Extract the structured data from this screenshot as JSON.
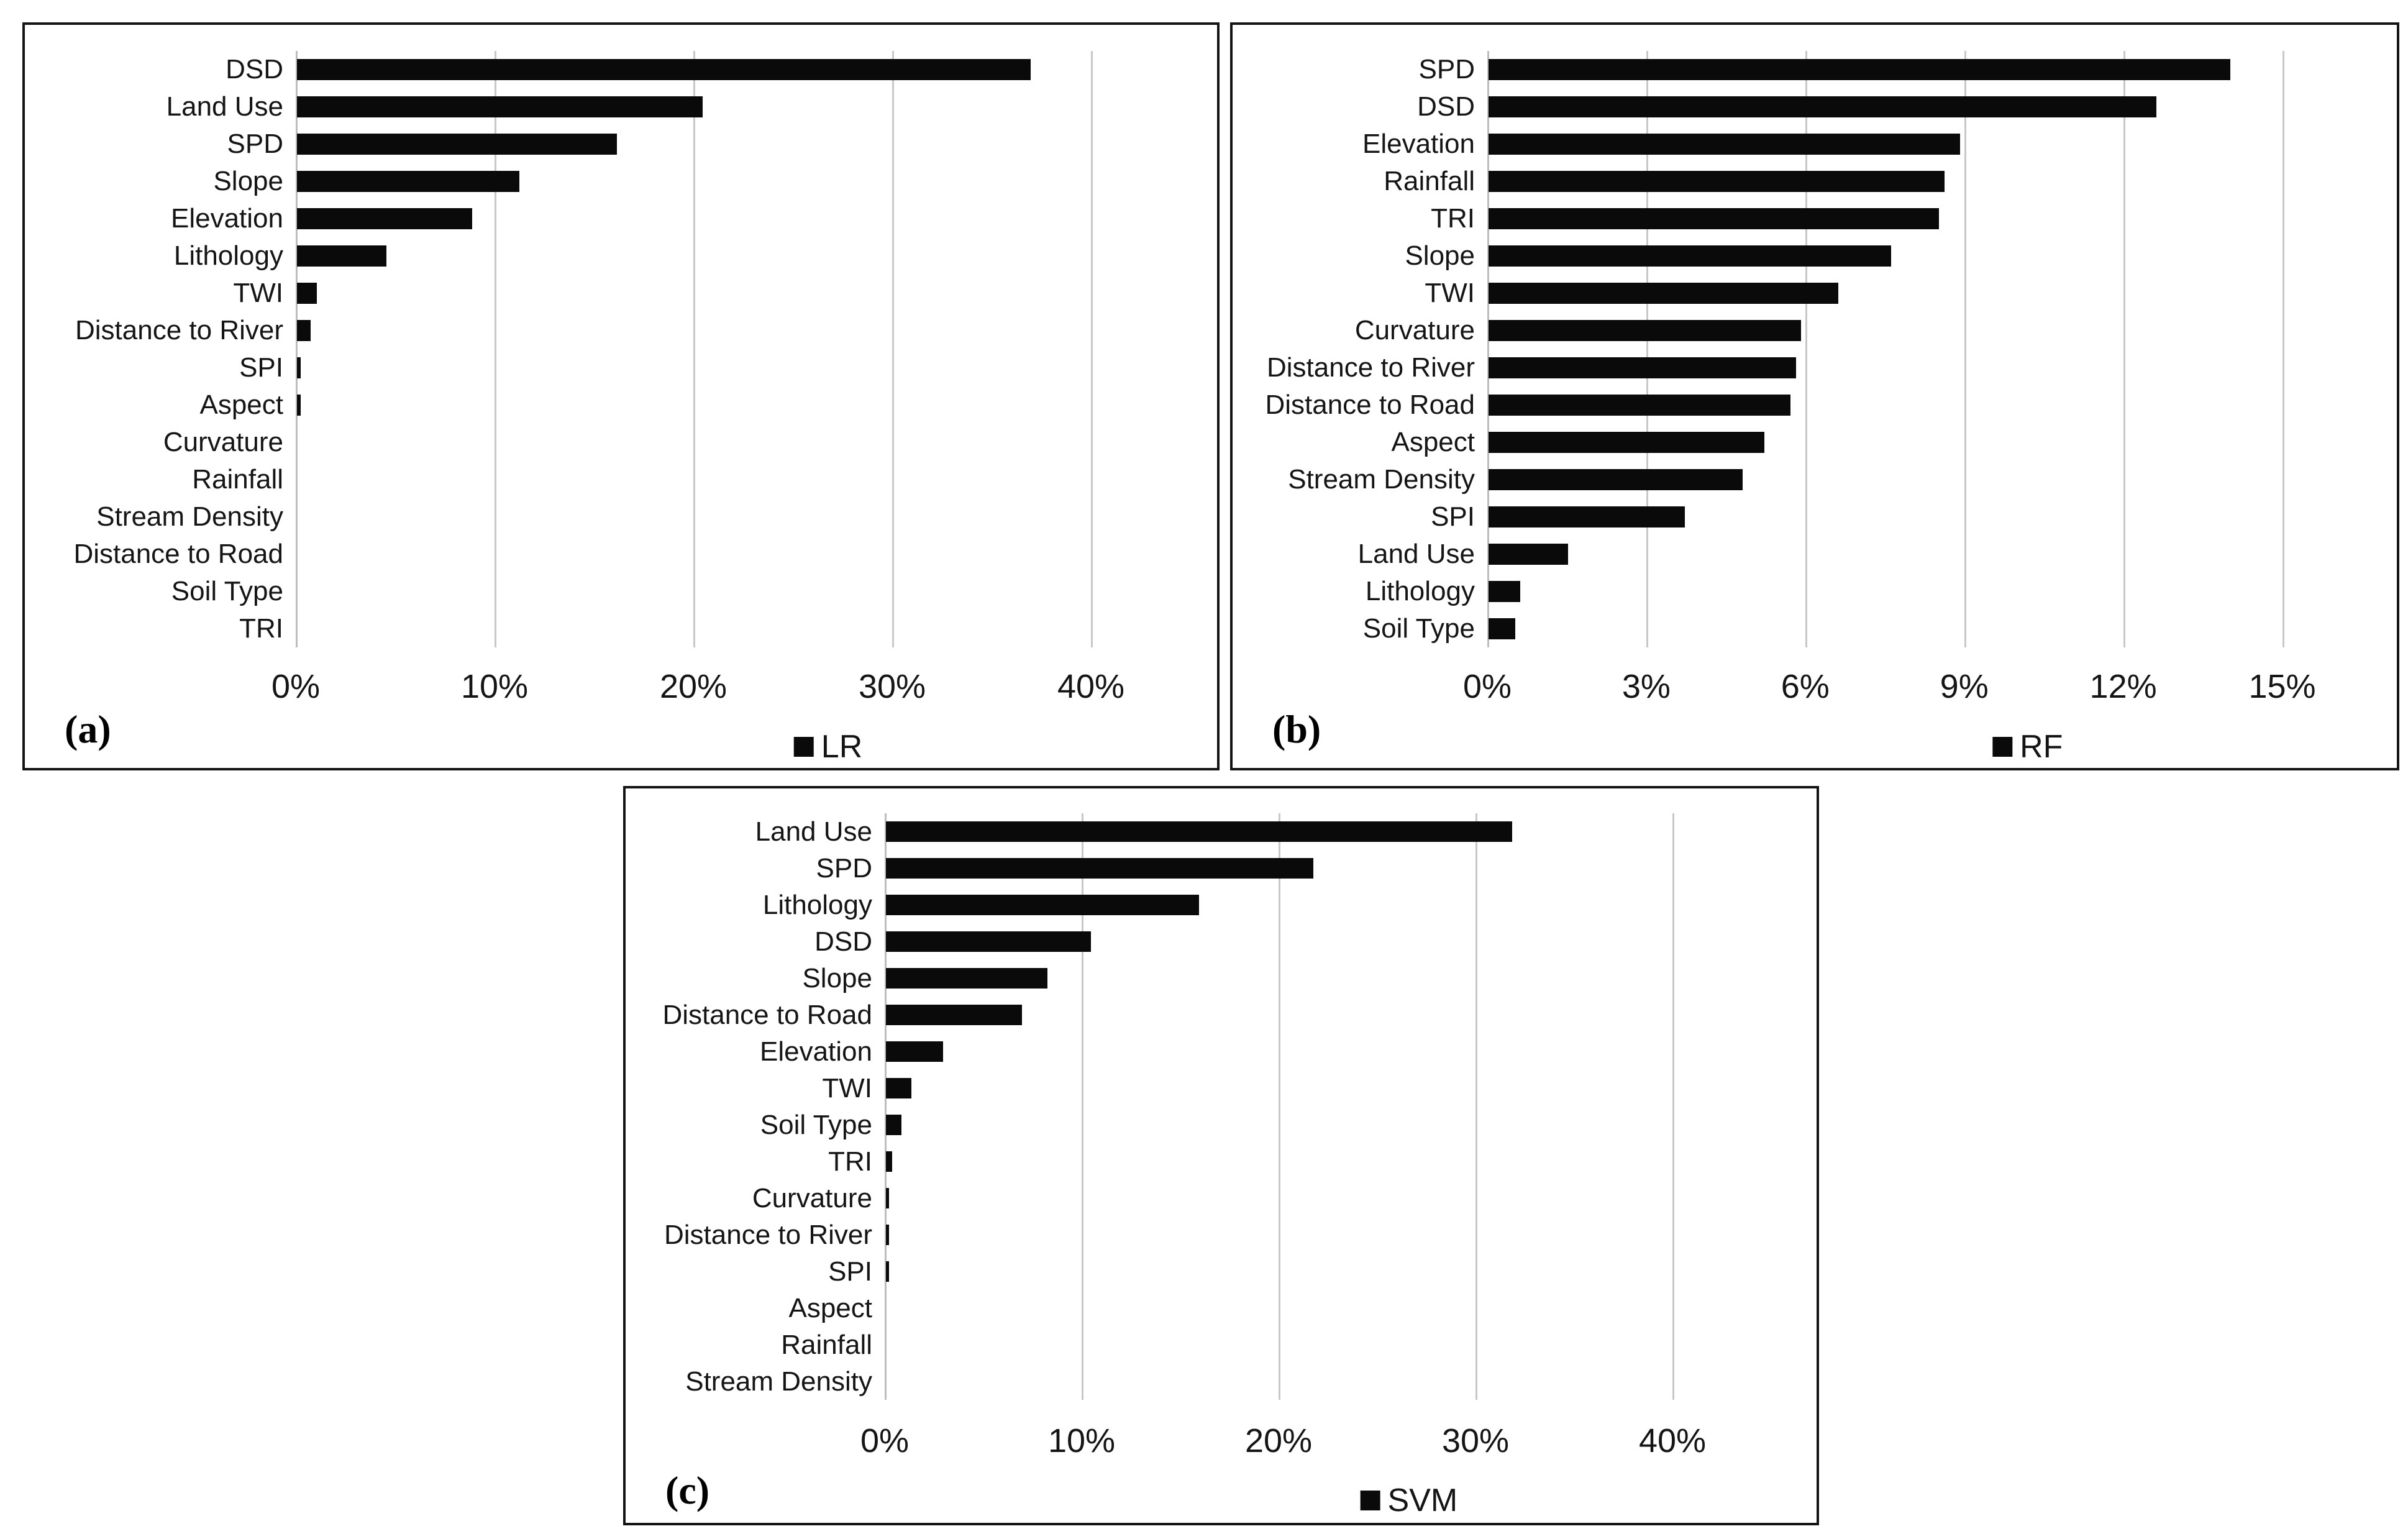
{
  "colors": {
    "background": "#ffffff",
    "bar": "#0a0a0a",
    "gridline": "#c8c8c8",
    "panel_border": "#141414",
    "text": "#1a1a1a"
  },
  "chart_data": [
    {
      "type": "bar",
      "orientation": "horizontal",
      "panel_label": "(a)",
      "legend": "LR",
      "legend_position": "bottom",
      "grid": "vertical",
      "categories": [
        "DSD",
        "Land Use",
        "SPD",
        "Slope",
        "Elevation",
        "Lithology",
        "TWI",
        "Distance to River",
        "SPI",
        "Aspect",
        "Curvature",
        "Rainfall",
        "Stream Density",
        "Distance to Road",
        "Soil Type",
        "TRI"
      ],
      "values": [
        36.9,
        20.4,
        16.1,
        11.2,
        8.8,
        4.5,
        1.0,
        0.7,
        0.2,
        0.2,
        0,
        0,
        0,
        0,
        0,
        0
      ],
      "value_unit": "%",
      "xlabel": "",
      "ylabel": "",
      "x_tick_labels": [
        "0%",
        "10%",
        "20%",
        "30%",
        "40%"
      ],
      "x_tick_values": [
        0,
        10,
        20,
        30,
        40
      ],
      "xlim": [
        0,
        44.3
      ]
    },
    {
      "type": "bar",
      "orientation": "horizontal",
      "panel_label": "(b)",
      "legend": "RF",
      "legend_position": "bottom",
      "grid": "vertical",
      "categories": [
        "SPD",
        "DSD",
        "Elevation",
        "Rainfall",
        "TRI",
        "Slope",
        "TWI",
        "Curvature",
        "Distance to River",
        "Distance to Road",
        "Aspect",
        "Stream Density",
        "SPI",
        "Land Use",
        "Lithology",
        "Soil Type"
      ],
      "values": [
        14.0,
        12.6,
        8.9,
        8.6,
        8.5,
        7.6,
        6.6,
        5.9,
        5.8,
        5.7,
        5.2,
        4.8,
        3.7,
        1.5,
        0.6,
        0.5
      ],
      "value_unit": "%",
      "xlabel": "",
      "ylabel": "",
      "x_tick_labels": [
        "0%",
        "3%",
        "6%",
        "9%",
        "12%",
        "15%"
      ],
      "x_tick_values": [
        0,
        3,
        6,
        9,
        12,
        15
      ],
      "xlim": [
        0,
        16.8
      ]
    },
    {
      "type": "bar",
      "orientation": "horizontal",
      "panel_label": "(c)",
      "legend": "SVM",
      "legend_position": "bottom",
      "grid": "vertical",
      "categories": [
        "Land Use",
        "SPD",
        "Lithology",
        "DSD",
        "Slope",
        "Distance to Road",
        "Elevation",
        "TWI",
        "Soil Type",
        "TRI",
        "Curvature",
        "Distance to River",
        "SPI",
        "Aspect",
        "Rainfall",
        "Stream Density"
      ],
      "values": [
        31.8,
        21.7,
        15.9,
        10.4,
        8.2,
        6.9,
        2.9,
        1.3,
        0.8,
        0.3,
        0.15,
        0.15,
        0.15,
        0,
        0,
        0
      ],
      "value_unit": "%",
      "xlabel": "",
      "ylabel": "",
      "x_tick_labels": [
        "0%",
        "10%",
        "20%",
        "30%",
        "40%"
      ],
      "x_tick_values": [
        0,
        10,
        20,
        30,
        40
      ],
      "xlim": [
        0,
        44.3
      ]
    }
  ]
}
